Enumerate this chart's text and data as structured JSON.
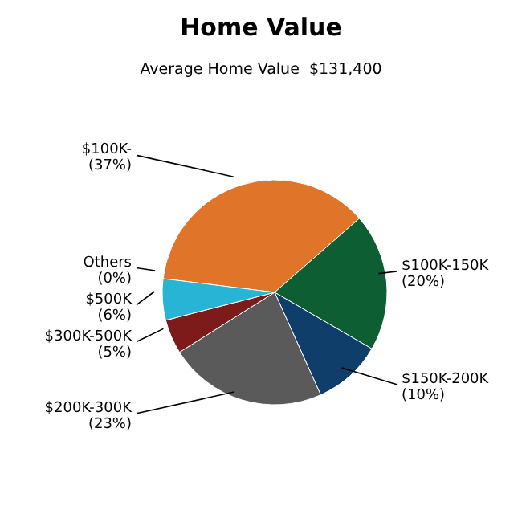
{
  "chart_data": {
    "type": "pie",
    "title": "Home Value",
    "subtitle": "Average Home Value  $131,400",
    "categories": [
      "$100K-",
      "$100K-150K",
      "$150K-200K",
      "$200K-300K",
      "$300K-500K",
      "$500K",
      "Others"
    ],
    "values": [
      37,
      20,
      10,
      23,
      5,
      6,
      0
    ],
    "value_labels": [
      "(37%)",
      "(20%)",
      "(10%)",
      "(23%)",
      "(5%)",
      "(6%)",
      "(0%)"
    ],
    "colors": [
      "#e07428",
      "#0d5e32",
      "#0f3e6a",
      "#5a5a5a",
      "#7d1a1a",
      "#28b4d4",
      "#a0a0a0"
    ]
  }
}
